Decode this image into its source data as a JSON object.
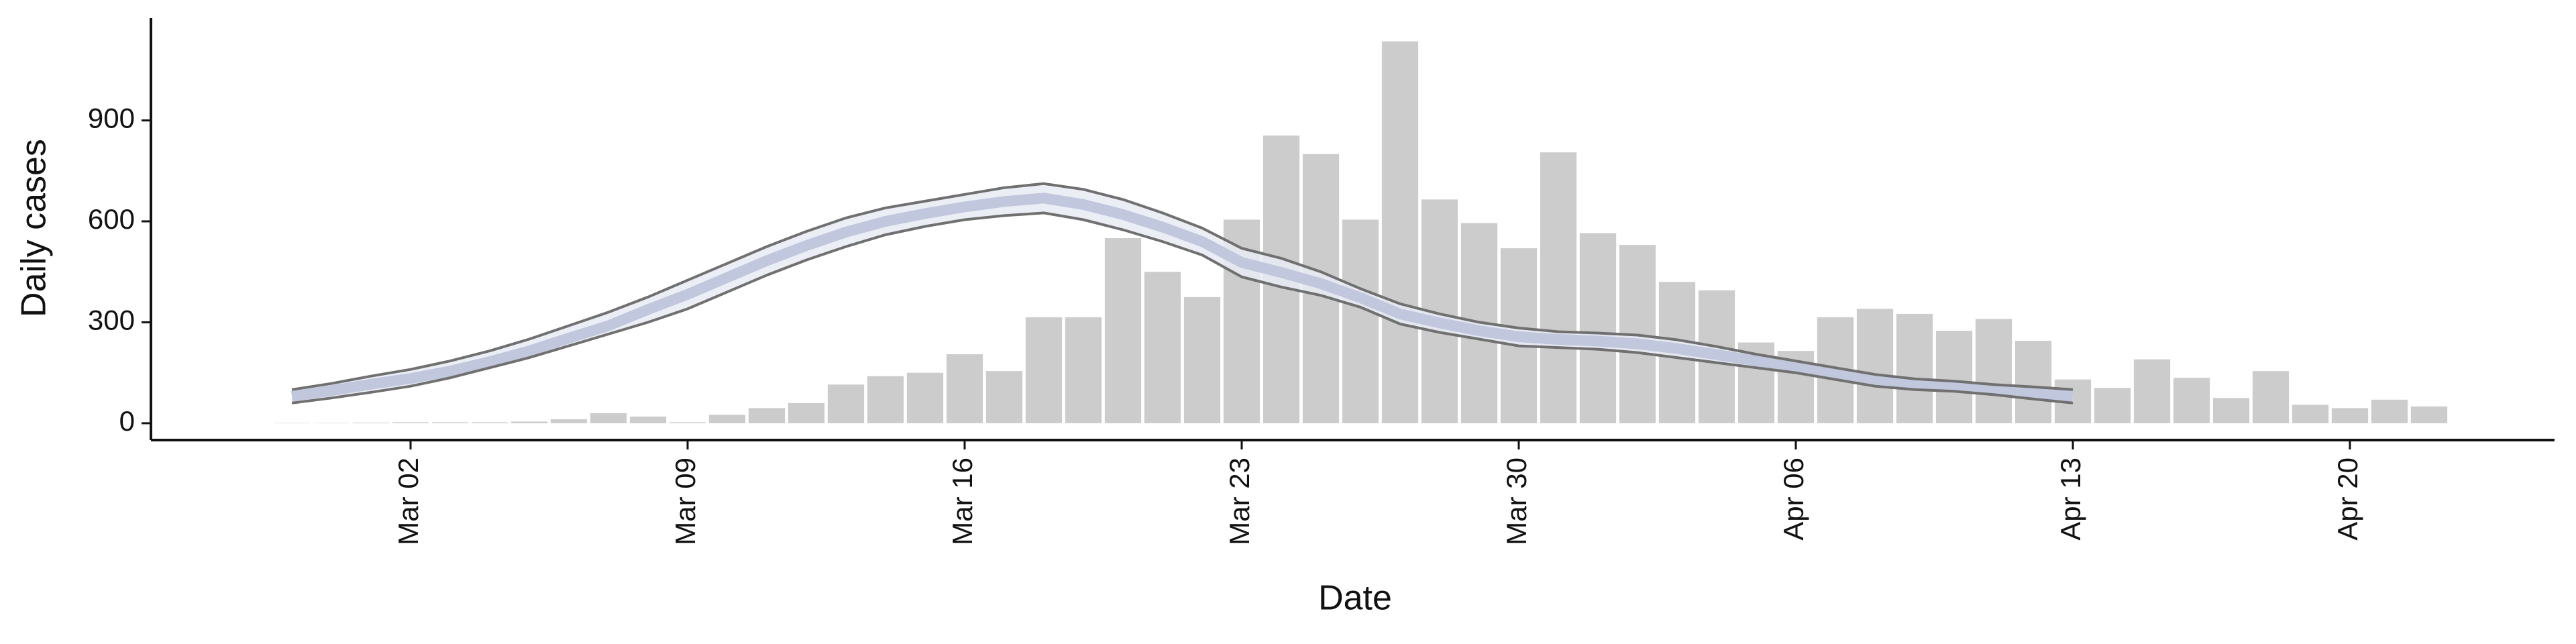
{
  "chart_data": {
    "type": "bar",
    "x_label": "Date",
    "y_label": "Daily cases",
    "categories": [
      "Feb 28",
      "Feb 29",
      "Mar 01",
      "Mar 02",
      "Mar 03",
      "Mar 04",
      "Mar 05",
      "Mar 06",
      "Mar 07",
      "Mar 08",
      "Mar 09",
      "Mar 10",
      "Mar 11",
      "Mar 12",
      "Mar 13",
      "Mar 14",
      "Mar 15",
      "Mar 16",
      "Mar 17",
      "Mar 18",
      "Mar 19",
      "Mar 20",
      "Mar 21",
      "Mar 22",
      "Mar 23",
      "Mar 24",
      "Mar 25",
      "Mar 26",
      "Mar 27",
      "Mar 28",
      "Mar 29",
      "Mar 30",
      "Mar 31",
      "Apr 01",
      "Apr 02",
      "Apr 03",
      "Apr 04",
      "Apr 05",
      "Apr 06",
      "Apr 07",
      "Apr 08",
      "Apr 09",
      "Apr 10",
      "Apr 11",
      "Apr 12",
      "Apr 13",
      "Apr 14",
      "Apr 15",
      "Apr 16",
      "Apr 17",
      "Apr 18",
      "Apr 19",
      "Apr 20",
      "Apr 21",
      "Apr 22"
    ],
    "values": [
      1,
      1,
      2,
      3,
      3,
      3,
      5,
      12,
      30,
      20,
      3,
      25,
      45,
      60,
      115,
      140,
      150,
      205,
      155,
      315,
      315,
      550,
      450,
      375,
      605,
      855,
      800,
      605,
      1135,
      665,
      595,
      520,
      805,
      565,
      530,
      420,
      395,
      240,
      215,
      315,
      340,
      325,
      275,
      310,
      245,
      130,
      105,
      190,
      135,
      75,
      155,
      55,
      45,
      70,
      50
    ],
    "color": "#cccccc",
    "ylim": [
      -50,
      1200
    ],
    "yticks": [
      0,
      300,
      600,
      900
    ],
    "xticks": [
      "Mar 02",
      "Mar 09",
      "Mar 16",
      "Mar 23",
      "Mar 30",
      "Apr 06",
      "Apr 13",
      "Apr 20"
    ],
    "band": {
      "upper": [
        100,
        118,
        140,
        160,
        185,
        215,
        250,
        290,
        330,
        375,
        425,
        475,
        525,
        570,
        610,
        640,
        660,
        680,
        700,
        712,
        695,
        665,
        625,
        580,
        520,
        490,
        450,
        400,
        355,
        325,
        300,
        283,
        272,
        268,
        262,
        248,
        228,
        205,
        185,
        165,
        145,
        132,
        125,
        115,
        108,
        100,
        null,
        null,
        null,
        null,
        null,
        null,
        null,
        null,
        null
      ],
      "lower": [
        60,
        75,
        92,
        110,
        135,
        165,
        195,
        230,
        265,
        300,
        340,
        390,
        440,
        485,
        525,
        560,
        585,
        605,
        617,
        625,
        605,
        575,
        540,
        500,
        435,
        405,
        380,
        345,
        295,
        270,
        250,
        230,
        225,
        220,
        210,
        195,
        180,
        165,
        150,
        130,
        110,
        100,
        95,
        85,
        72,
        60,
        null,
        null,
        null,
        null,
        null,
        null,
        null,
        null,
        null
      ],
      "median": [
        80,
        97,
        116,
        133,
        155,
        183,
        215,
        253,
        290,
        338,
        383,
        433,
        483,
        528,
        568,
        600,
        623,
        643,
        659,
        669,
        650,
        620,
        583,
        540,
        478,
        448,
        415,
        373,
        325,
        298,
        275,
        257,
        249,
        244,
        236,
        222,
        204,
        185,
        168,
        148,
        128,
        116,
        110,
        100,
        90,
        80,
        null,
        null,
        null,
        null,
        null,
        null,
        null,
        null,
        null
      ],
      "fill": "#e9ebf4",
      "edge_color": "#707070",
      "median_color": "#bcc3da"
    }
  }
}
